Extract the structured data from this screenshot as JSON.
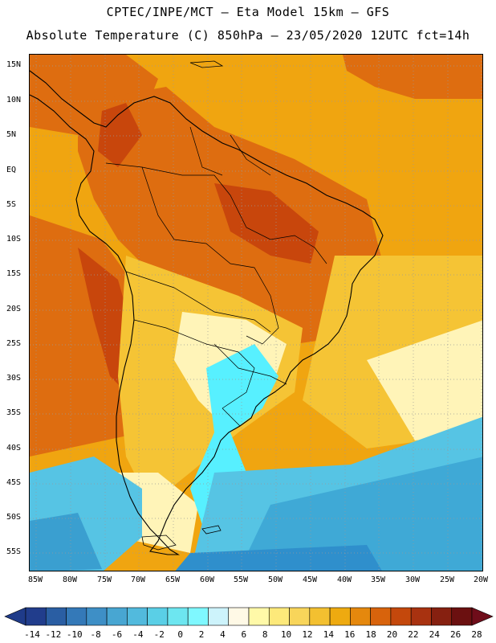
{
  "header": {
    "line1": "CPTEC/INPE/MCT –  Eta Model 15km – GFS",
    "line2": "Absolute Temperature (C) 850hPa – 23/05/2020 12UTC fct=14h"
  },
  "map": {
    "lat_ticks": [
      "15N",
      "10N",
      "5N",
      "EQ",
      "5S",
      "10S",
      "15S",
      "20S",
      "25S",
      "30S",
      "35S",
      "40S",
      "45S",
      "50S",
      "55S"
    ],
    "lon_ticks": [
      "85W",
      "80W",
      "75W",
      "70W",
      "65W",
      "60W",
      "55W",
      "50W",
      "45W",
      "40W",
      "35W",
      "30W",
      "25W",
      "20W"
    ],
    "fields": [
      {
        "name": "cold-south-pacific",
        "color": "#3a9fd0"
      },
      {
        "name": "cold-south-atlantic",
        "color": "#3fa9d6"
      },
      {
        "name": "cool-band",
        "color": "#56c4e4"
      },
      {
        "name": "cold-tongue",
        "color": "#57f0ff"
      },
      {
        "name": "mild",
        "color": "#fff4b8"
      },
      {
        "name": "warm",
        "color": "#f5c435"
      },
      {
        "name": "warmer",
        "color": "#f0a510"
      },
      {
        "name": "hot",
        "color": "#de6d10"
      },
      {
        "name": "hottest",
        "color": "#c8460c"
      }
    ]
  },
  "colorbar": {
    "labels": [
      "-14",
      "-12",
      "-10",
      "-8",
      "-6",
      "-4",
      "-2",
      "0",
      "2",
      "4",
      "6",
      "8",
      "10",
      "12",
      "14",
      "16",
      "18",
      "20",
      "22",
      "24",
      "26",
      "28"
    ],
    "colors": [
      "#213d8c",
      "#2a5ea3",
      "#3479b8",
      "#3e8fc6",
      "#48a6d2",
      "#52badd",
      "#5acfe6",
      "#6de6f0",
      "#7ff8ff",
      "#cdf3fb",
      "#fff9e6",
      "#fff9a8",
      "#fde97a",
      "#f8d55a",
      "#f3c030",
      "#eeaa10",
      "#e5880d",
      "#d8630c",
      "#c4480c",
      "#a83210",
      "#862010",
      "#6b1010"
    ],
    "under_color": "#1f3b89",
    "over_color": "#6f0d1a"
  }
}
